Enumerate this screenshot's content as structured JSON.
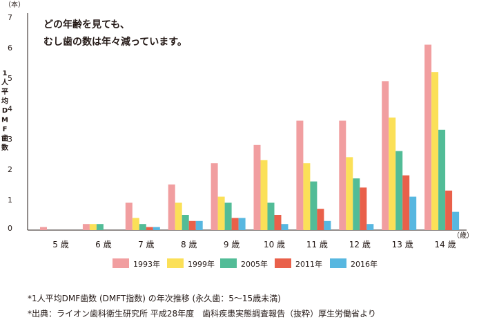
{
  "chart_data": {
    "type": "bar",
    "y_unit": "（本）",
    "x_unit": "（歳）",
    "ylabel_chars": [
      "1",
      "人",
      "平",
      "均",
      "D",
      "M",
      "F",
      "歯",
      "数"
    ],
    "ylim": [
      0,
      7
    ],
    "yticks": [
      "0",
      "1",
      "2",
      "3",
      "4",
      "5",
      "6",
      "7"
    ],
    "categories": [
      "5 歳",
      "6 歳",
      "7 歳",
      "8 歳",
      "9 歳",
      "10 歳",
      "11 歳",
      "12 歳",
      "13 歳",
      "14 歳"
    ],
    "series": [
      {
        "name": "1993年",
        "color": "#f19ea0",
        "values": [
          0.1,
          0.2,
          0.9,
          1.5,
          2.2,
          2.8,
          3.6,
          3.6,
          4.9,
          6.1
        ]
      },
      {
        "name": "1999年",
        "color": "#fbe058",
        "values": [
          0,
          0.2,
          0.4,
          0.9,
          1.1,
          2.3,
          2.2,
          2.4,
          3.7,
          5.2
        ]
      },
      {
        "name": "2005年",
        "color": "#52bc97",
        "values": [
          0,
          0.2,
          0.2,
          0.5,
          0.9,
          0.9,
          1.6,
          1.7,
          2.6,
          3.3
        ]
      },
      {
        "name": "2011年",
        "color": "#e9604a",
        "values": [
          0,
          0,
          0.1,
          0.3,
          0.4,
          0.5,
          0.7,
          1.4,
          1.8,
          1.3
        ]
      },
      {
        "name": "2016年",
        "color": "#57b7e0",
        "values": [
          0,
          0,
          0.1,
          0.3,
          0.4,
          0.2,
          0.3,
          0.2,
          1.1,
          0.6
        ]
      }
    ],
    "annotation": [
      "どの年齢を見ても、",
      "むし歯の数は年々減っています。"
    ],
    "legend_position": "bottom"
  },
  "notes": [
    "*1人平均DMF歯数 (DMFT指数) の年次推移 (永久歯：5〜15歳未満)",
    "*出典：ライオン歯科衛生研究所 平成28年度　歯科疾患実態調査報告（抜粋）厚生労働省より"
  ]
}
